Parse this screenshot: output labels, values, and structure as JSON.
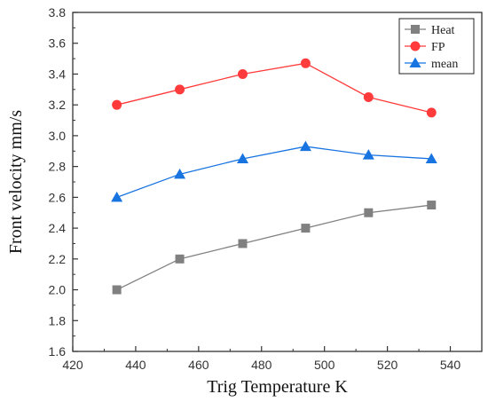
{
  "chart_data": {
    "type": "line",
    "xlabel": "Trig Temperature  K",
    "ylabel": "Front velocity  mm/s",
    "xlim": [
      420,
      550
    ],
    "ylim": [
      1.6,
      3.8
    ],
    "xticks": [
      420,
      440,
      460,
      480,
      500,
      520,
      540
    ],
    "yticks": [
      1.6,
      1.8,
      2.0,
      2.2,
      2.4,
      2.6,
      2.8,
      3.0,
      3.2,
      3.4,
      3.6,
      3.8
    ],
    "xtick_labels": [
      "420",
      "440",
      "460",
      "480",
      "500",
      "520",
      "540"
    ],
    "ytick_labels": [
      "1.6",
      "1.8",
      "2.0",
      "2.2",
      "2.4",
      "2.6",
      "2.8",
      "3.0",
      "3.2",
      "3.4",
      "3.6",
      "3.8"
    ],
    "x": [
      434,
      454,
      474,
      494,
      514,
      534
    ],
    "legend_position": "top-right",
    "grid": false,
    "series": [
      {
        "name": "Heat",
        "values": [
          2.0,
          2.2,
          2.3,
          2.4,
          2.5,
          2.55
        ],
        "color": "#808080",
        "marker": "square"
      },
      {
        "name": "FP",
        "values": [
          3.2,
          3.3,
          3.4,
          3.47,
          3.25,
          3.15
        ],
        "color": "#ff3b3b",
        "marker": "circle"
      },
      {
        "name": "mean",
        "values": [
          2.6,
          2.75,
          2.85,
          2.93,
          2.875,
          2.85
        ],
        "color": "#1874e0",
        "marker": "triangle"
      }
    ]
  }
}
